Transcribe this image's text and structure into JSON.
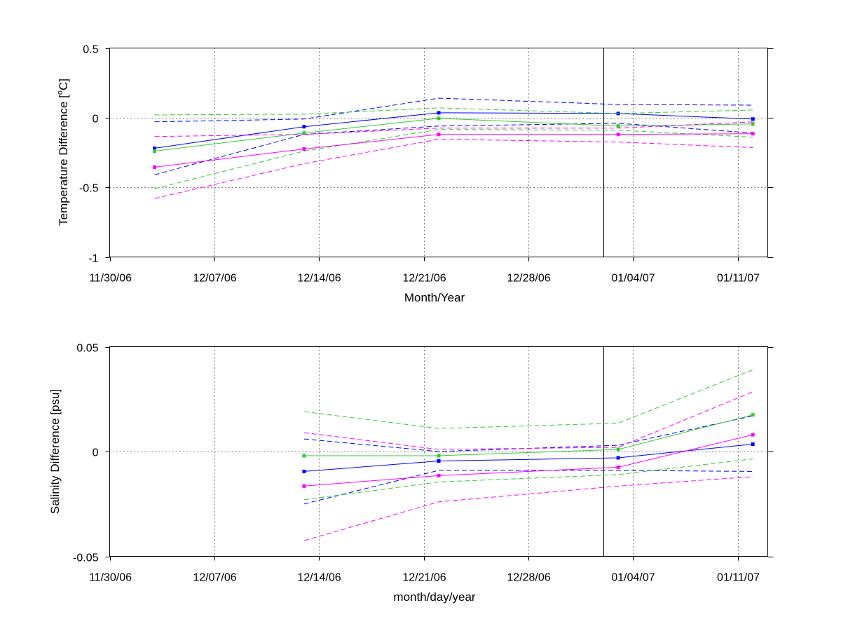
{
  "chart_data": [
    {
      "type": "line",
      "title": "",
      "xlabel": "Month/Year",
      "ylabel_parts": [
        "Temperature Difference [",
        "o",
        "C]"
      ],
      "x_ticks": [
        "11/30/06",
        "12/07/06",
        "12/14/06",
        "12/21/06",
        "12/28/06",
        "01/04/07",
        "01/11/07"
      ],
      "xlim": [
        "2006-11-30",
        "2007-01-13"
      ],
      "ylim": [
        -1,
        0.5
      ],
      "y_ticks": [
        0.5,
        0,
        -0.5,
        -1
      ],
      "y_tick_labels": [
        "0.5",
        "0",
        "-0.5",
        "-1"
      ],
      "grid": true,
      "vertical_marker": "2007-01-02",
      "series": [
        {
          "color": "#0000ff",
          "style": "solid",
          "marker": true,
          "x": [
            "2006-12-03",
            "2006-12-13",
            "2006-12-22",
            "2007-01-03",
            "2007-01-12"
          ],
          "values": [
            -0.22,
            -0.065,
            0.035,
            0.03,
            -0.01
          ]
        },
        {
          "color": "#0000ff",
          "style": "dashed",
          "marker": false,
          "x": [
            "2006-12-03",
            "2006-12-13",
            "2006-12-22",
            "2007-01-03",
            "2007-01-12"
          ],
          "values": [
            -0.03,
            -0.01,
            0.14,
            0.095,
            0.09
          ]
        },
        {
          "color": "#0000ff",
          "style": "dashed",
          "marker": false,
          "x": [
            "2006-12-03",
            "2006-12-13",
            "2006-12-22",
            "2007-01-03",
            "2007-01-12"
          ],
          "values": [
            -0.41,
            -0.12,
            -0.06,
            -0.04,
            -0.11
          ]
        },
        {
          "color": "#33cc33",
          "style": "solid",
          "marker": true,
          "x": [
            "2006-12-03",
            "2006-12-13",
            "2006-12-22",
            "2007-01-03",
            "2007-01-12"
          ],
          "values": [
            -0.24,
            -0.11,
            -0.005,
            -0.06,
            -0.045
          ]
        },
        {
          "color": "#33cc33",
          "style": "dashed",
          "marker": false,
          "x": [
            "2006-12-03",
            "2006-12-13",
            "2006-12-22",
            "2007-01-03",
            "2007-01-12"
          ],
          "values": [
            0.02,
            0.025,
            0.07,
            0.03,
            0.055
          ]
        },
        {
          "color": "#33cc33",
          "style": "dashed",
          "marker": false,
          "x": [
            "2006-12-03",
            "2006-12-13",
            "2006-12-22",
            "2007-01-03",
            "2007-01-12"
          ],
          "values": [
            -0.51,
            -0.24,
            -0.085,
            -0.09,
            -0.14
          ]
        },
        {
          "color": "#ff00ff",
          "style": "solid",
          "marker": true,
          "x": [
            "2006-12-03",
            "2006-12-13",
            "2006-12-22",
            "2007-01-03",
            "2007-01-12"
          ],
          "values": [
            -0.355,
            -0.225,
            -0.12,
            -0.12,
            -0.115
          ]
        },
        {
          "color": "#ff00ff",
          "style": "dashed",
          "marker": false,
          "x": [
            "2006-12-03",
            "2006-12-13",
            "2006-12-22",
            "2007-01-03",
            "2007-01-12"
          ],
          "values": [
            -0.135,
            -0.12,
            -0.075,
            -0.075,
            -0.03
          ]
        },
        {
          "color": "#ff00ff",
          "style": "dashed",
          "marker": false,
          "x": [
            "2006-12-03",
            "2006-12-13",
            "2006-12-22",
            "2007-01-03",
            "2007-01-12"
          ],
          "values": [
            -0.58,
            -0.33,
            -0.155,
            -0.175,
            -0.215
          ]
        }
      ]
    },
    {
      "type": "line",
      "title": "",
      "xlabel": "month/day/year",
      "ylabel": "Salinity Difference [psu]",
      "x_ticks": [
        "11/30/06",
        "12/07/06",
        "12/14/06",
        "12/21/06",
        "12/28/06",
        "01/04/07",
        "01/11/07"
      ],
      "xlim": [
        "2006-11-30",
        "2007-01-13"
      ],
      "ylim": [
        -0.05,
        0.05
      ],
      "y_ticks": [
        0.05,
        0,
        -0.05
      ],
      "y_tick_labels": [
        "0.05",
        "0",
        "-0.05"
      ],
      "grid": true,
      "vertical_marker": "2007-01-02",
      "series": [
        {
          "color": "#0000ff",
          "style": "solid",
          "marker": true,
          "x": [
            "2006-12-13",
            "2006-12-22",
            "2007-01-03",
            "2007-01-12"
          ],
          "values": [
            -0.0095,
            -0.0045,
            -0.003,
            0.0035
          ]
        },
        {
          "color": "#0000ff",
          "style": "dashed",
          "marker": false,
          "x": [
            "2006-12-13",
            "2006-12-22",
            "2007-01-03",
            "2007-01-12"
          ],
          "values": [
            0.006,
            0.0,
            0.003,
            0.017
          ]
        },
        {
          "color": "#0000ff",
          "style": "dashed",
          "marker": false,
          "x": [
            "2006-12-13",
            "2006-12-22",
            "2007-01-03",
            "2007-01-12"
          ],
          "values": [
            -0.025,
            -0.009,
            -0.009,
            -0.0095
          ]
        },
        {
          "color": "#33cc33",
          "style": "solid",
          "marker": true,
          "x": [
            "2006-12-13",
            "2006-12-22",
            "2007-01-03",
            "2007-01-12"
          ],
          "values": [
            -0.002,
            -0.002,
            0.001,
            0.0175
          ]
        },
        {
          "color": "#33cc33",
          "style": "dashed",
          "marker": false,
          "x": [
            "2006-12-13",
            "2006-12-22",
            "2007-01-03",
            "2007-01-12"
          ],
          "values": [
            0.019,
            0.011,
            0.0135,
            0.039
          ]
        },
        {
          "color": "#33cc33",
          "style": "dashed",
          "marker": false,
          "x": [
            "2006-12-13",
            "2006-12-22",
            "2007-01-03",
            "2007-01-12"
          ],
          "values": [
            -0.023,
            -0.0145,
            -0.011,
            -0.0035
          ]
        },
        {
          "color": "#ff00ff",
          "style": "solid",
          "marker": true,
          "x": [
            "2006-12-13",
            "2006-12-22",
            "2007-01-03",
            "2007-01-12"
          ],
          "values": [
            -0.0165,
            -0.0115,
            -0.0075,
            0.008
          ]
        },
        {
          "color": "#ff00ff",
          "style": "dashed",
          "marker": false,
          "x": [
            "2006-12-13",
            "2006-12-22",
            "2007-01-03",
            "2007-01-12"
          ],
          "values": [
            0.009,
            0.001,
            0.002,
            0.0285
          ]
        },
        {
          "color": "#ff00ff",
          "style": "dashed",
          "marker": false,
          "x": [
            "2006-12-13",
            "2006-12-22",
            "2007-01-03",
            "2007-01-12"
          ],
          "values": [
            -0.0425,
            -0.024,
            -0.0165,
            -0.012
          ]
        }
      ]
    }
  ]
}
